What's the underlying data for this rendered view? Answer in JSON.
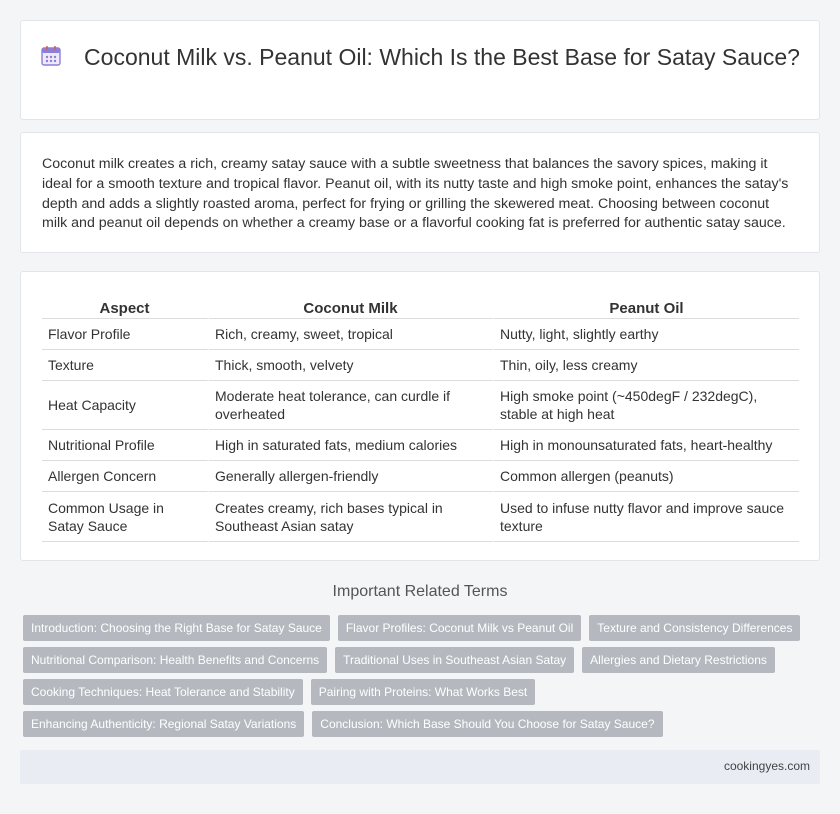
{
  "header": {
    "title": "Coconut Milk vs. Peanut Oil: Which Is the Best Base for Satay Sauce?",
    "icon": "calendar-icon"
  },
  "intro": {
    "text": "Coconut milk creates a rich, creamy satay sauce with a subtle sweetness that balances the savory spices, making it ideal for a smooth texture and tropical flavor. Peanut oil, with its nutty taste and high smoke point, enhances the satay's depth and adds a slightly roasted aroma, perfect for frying or grilling the skewered meat. Choosing between coconut milk and peanut oil depends on whether a creamy base or a flavorful cooking fat is preferred for authentic satay sauce."
  },
  "table": {
    "headers": [
      "Aspect",
      "Coconut Milk",
      "Peanut Oil"
    ],
    "rows": [
      [
        "Flavor Profile",
        "Rich, creamy, sweet, tropical",
        "Nutty, light, slightly earthy"
      ],
      [
        "Texture",
        "Thick, smooth, velvety",
        "Thin, oily, less creamy"
      ],
      [
        "Heat Capacity",
        "Moderate heat tolerance, can curdle if overheated",
        "High smoke point (~450degF / 232degC), stable at high heat"
      ],
      [
        "Nutritional Profile",
        "High in saturated fats, medium calories",
        "High in monounsaturated fats, heart-healthy"
      ],
      [
        "Allergen Concern",
        "Generally allergen-friendly",
        "Common allergen (peanuts)"
      ],
      [
        "Common Usage in Satay Sauce",
        "Creates creamy, rich bases typical in Southeast Asian satay",
        "Used to infuse nutty flavor and improve sauce texture"
      ]
    ]
  },
  "related": {
    "title": "Important Related Terms",
    "tags": [
      "Introduction: Choosing the Right Base for Satay Sauce",
      "Flavor Profiles: Coconut Milk vs Peanut Oil",
      "Texture and Consistency Differences",
      "Nutritional Comparison: Health Benefits and Concerns",
      "Traditional Uses in Southeast Asian Satay",
      "Allergies and Dietary Restrictions",
      "Cooking Techniques: Heat Tolerance and Stability",
      "Pairing with Proteins: What Works Best",
      "Enhancing Authenticity: Regional Satay Variations",
      "Conclusion: Which Base Should You Choose for Satay Sauce?"
    ]
  },
  "footer": {
    "site": "cookingyes.com"
  },
  "colors": {
    "tag_bg": "#b5b9bf",
    "footer_bg": "#e9ecf3",
    "icon_purple": "#8b7fd6",
    "icon_red": "#e25a5a"
  }
}
